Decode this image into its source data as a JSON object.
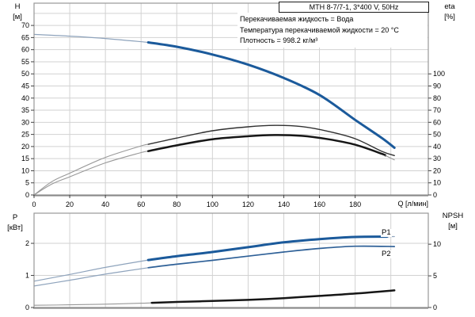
{
  "header": {
    "title": "MTH 8-7/7-1, 3*400 V, 50Hz",
    "info_lines": [
      "Перекачиваемая жидкость = Вода",
      "Температура перекачиваемой жидкости = 20 °C",
      "Плотность = 998.2 кг/м³"
    ]
  },
  "colors": {
    "accent_blue": "#1b5a9b",
    "grid": "#d2d2d2",
    "frame": "#989898",
    "axis_line": "#8a8a8a",
    "tick": "#444444",
    "text": "#000000"
  },
  "styles": {
    "blue": {
      "thin": [
        "#8ea3bc",
        1.2
      ],
      "thick": [
        "#1b5a9b",
        3.0
      ]
    },
    "blue_mid": {
      "thin": [
        "#8ea3bc",
        1.2
      ],
      "thick": [
        "#2e6097",
        1.7
      ]
    },
    "dark_thin": {
      "thin": [
        "#989898",
        1.1
      ],
      "thick": [
        "#303030",
        1.4
      ]
    },
    "black": {
      "thin": [
        "#989898",
        1.1
      ],
      "thick": [
        "#161616",
        2.5
      ]
    }
  },
  "chart_data": [
    {
      "type": "line",
      "name": "Q-H pump performance curve with efficiency",
      "x_axis": {
        "label": "Q [л/мин]",
        "ticks": [
          0,
          20,
          40,
          60,
          80,
          100,
          120,
          140,
          160,
          180
        ],
        "grid_step": 20,
        "range": [
          0,
          221
        ]
      },
      "y_left": {
        "label": "H",
        "unit": "[м]",
        "ticks": [
          0,
          5,
          10,
          15,
          20,
          25,
          30,
          35,
          40,
          45,
          50,
          55,
          60,
          65,
          70
        ],
        "grid_step": 5,
        "range": [
          0,
          79.2
        ]
      },
      "y_right": {
        "label": "eta",
        "unit": "[%]",
        "ticks": [
          0,
          10,
          20,
          30,
          40,
          50,
          60,
          70,
          80,
          90,
          100
        ],
        "range": [
          0,
          158.4
        ]
      },
      "series": [
        {
          "id": "head-curve",
          "label": "",
          "axis": "left",
          "style": "blue",
          "thick_range": [
            64,
            202
          ],
          "points": [
            [
              0,
              66.3
            ],
            [
              20,
              65.6
            ],
            [
              40,
              64.6
            ],
            [
              64,
              63.0
            ],
            [
              80,
              61.2
            ],
            [
              100,
              58.0
            ],
            [
              120,
              53.8
            ],
            [
              140,
              48.3
            ],
            [
              160,
              41.3
            ],
            [
              180,
              31.0
            ],
            [
              195,
              23.5
            ],
            [
              202,
              19.5
            ]
          ]
        },
        {
          "id": "efficiency-pump",
          "label": "",
          "axis": "right",
          "style": "dark_thin",
          "thick_range": [
            64,
            202
          ],
          "points": [
            [
              0,
              0
            ],
            [
              10,
              11
            ],
            [
              20,
              18
            ],
            [
              40,
              31
            ],
            [
              60,
              40.5
            ],
            [
              80,
              47
            ],
            [
              100,
              53
            ],
            [
              120,
              56.3
            ],
            [
              135,
              57.5
            ],
            [
              150,
              56.5
            ],
            [
              165,
              52.5
            ],
            [
              180,
              46.5
            ],
            [
              195,
              36
            ],
            [
              202,
              32.5
            ]
          ]
        },
        {
          "id": "efficiency-pump-motor",
          "label": "",
          "axis": "right",
          "style": "black",
          "thick_range": [
            64,
            197
          ],
          "points": [
            [
              0,
              0
            ],
            [
              10,
              9
            ],
            [
              20,
              15
            ],
            [
              40,
              26.5
            ],
            [
              60,
              35
            ],
            [
              80,
              41
            ],
            [
              100,
              46
            ],
            [
              120,
              48.5
            ],
            [
              135,
              49.5
            ],
            [
              150,
              48.8
            ],
            [
              165,
              46
            ],
            [
              180,
              41.5
            ],
            [
              195,
              34
            ],
            [
              202,
              29
            ]
          ]
        }
      ]
    },
    {
      "type": "line",
      "name": "Power and NPSH curves",
      "x_axis": {
        "label": "Q [л/мин]",
        "ticks": [],
        "grid_step": 20,
        "range": [
          0,
          221
        ]
      },
      "y_left": {
        "label": "P",
        "unit": "[кВт]",
        "ticks": [
          0,
          1,
          2
        ],
        "grid_step": 1,
        "range": [
          0,
          2.94
        ]
      },
      "y_right": {
        "label": "NPSH",
        "unit": "[м]",
        "ticks": [
          0,
          5,
          10
        ],
        "range": [
          0,
          14.9
        ]
      },
      "series": [
        {
          "id": "power-p1",
          "label": "P1",
          "axis": "left",
          "style": "blue",
          "thick_range": [
            64,
            198
          ],
          "points": [
            [
              0,
              0.82
            ],
            [
              20,
              1.03
            ],
            [
              40,
              1.25
            ],
            [
              64,
              1.48
            ],
            [
              80,
              1.6
            ],
            [
              100,
              1.73
            ],
            [
              120,
              1.88
            ],
            [
              140,
              2.03
            ],
            [
              160,
              2.13
            ],
            [
              180,
              2.2
            ],
            [
              202,
              2.21
            ]
          ]
        },
        {
          "id": "power-p2",
          "label": "P2",
          "axis": "left",
          "style": "blue_mid",
          "thick_range": [
            64,
            202
          ],
          "points": [
            [
              0,
              0.67
            ],
            [
              20,
              0.85
            ],
            [
              40,
              1.04
            ],
            [
              64,
              1.24
            ],
            [
              80,
              1.35
            ],
            [
              100,
              1.47
            ],
            [
              120,
              1.6
            ],
            [
              140,
              1.73
            ],
            [
              160,
              1.84
            ],
            [
              180,
              1.91
            ],
            [
              202,
              1.9
            ]
          ]
        },
        {
          "id": "npsh",
          "label": "",
          "axis": "right",
          "style": "black",
          "thick_range": [
            66,
            202
          ],
          "points": [
            [
              0,
              0.35
            ],
            [
              20,
              0.42
            ],
            [
              40,
              0.52
            ],
            [
              60,
              0.68
            ],
            [
              80,
              0.88
            ],
            [
              100,
              1.03
            ],
            [
              120,
              1.2
            ],
            [
              140,
              1.48
            ],
            [
              160,
              1.83
            ],
            [
              180,
              2.2
            ],
            [
              202,
              2.7
            ]
          ]
        }
      ]
    }
  ]
}
